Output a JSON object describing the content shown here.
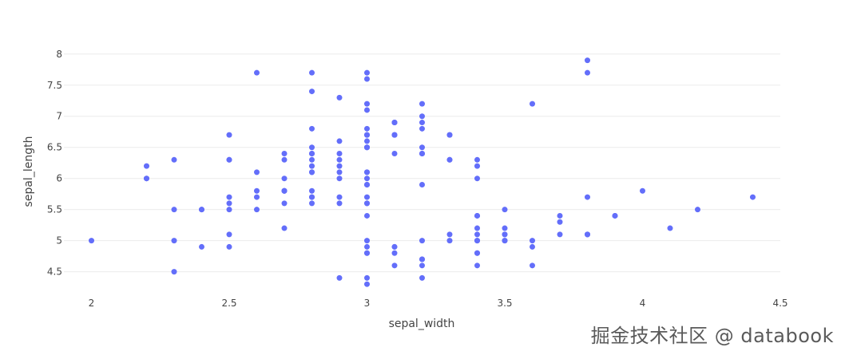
{
  "chart_data": {
    "type": "scatter",
    "title": "",
    "xlabel": "sepal_width",
    "ylabel": "sepal_length",
    "xlim": [
      1.9,
      4.5
    ],
    "ylim": [
      4.2,
      8.1
    ],
    "xticks": [
      2,
      2.5,
      3,
      3.5,
      4,
      4.5
    ],
    "xtick_labels": [
      "2",
      "2.5",
      "3",
      "3.5",
      "4",
      "4.5"
    ],
    "yticks": [
      4.5,
      5,
      5.5,
      6,
      6.5,
      7,
      7.5,
      8
    ],
    "ytick_labels": [
      "4.5",
      "5",
      "5.5",
      "6",
      "6.5",
      "7",
      "7.5",
      "8"
    ],
    "grid": true,
    "legend": false,
    "marker_color": "#636efa",
    "points": [
      [
        3.5,
        5.1
      ],
      [
        3.0,
        4.9
      ],
      [
        3.2,
        4.7
      ],
      [
        3.1,
        4.6
      ],
      [
        3.6,
        5.0
      ],
      [
        3.9,
        5.4
      ],
      [
        3.4,
        4.6
      ],
      [
        3.4,
        5.0
      ],
      [
        2.9,
        4.4
      ],
      [
        3.1,
        4.9
      ],
      [
        3.7,
        5.4
      ],
      [
        3.4,
        4.8
      ],
      [
        3.0,
        4.8
      ],
      [
        3.0,
        4.3
      ],
      [
        4.0,
        5.8
      ],
      [
        4.4,
        5.7
      ],
      [
        3.9,
        5.4
      ],
      [
        3.5,
        5.1
      ],
      [
        3.8,
        5.7
      ],
      [
        3.8,
        5.1
      ],
      [
        3.4,
        5.4
      ],
      [
        3.7,
        5.1
      ],
      [
        3.6,
        4.6
      ],
      [
        3.3,
        5.1
      ],
      [
        3.4,
        4.8
      ],
      [
        3.0,
        5.0
      ],
      [
        3.4,
        5.0
      ],
      [
        3.5,
        5.2
      ],
      [
        3.4,
        5.2
      ],
      [
        3.2,
        4.7
      ],
      [
        3.1,
        4.8
      ],
      [
        3.4,
        5.4
      ],
      [
        4.1,
        5.2
      ],
      [
        4.2,
        5.5
      ],
      [
        3.1,
        4.9
      ],
      [
        3.2,
        5.0
      ],
      [
        3.5,
        5.5
      ],
      [
        3.6,
        4.9
      ],
      [
        3.0,
        4.4
      ],
      [
        3.4,
        5.1
      ],
      [
        3.5,
        5.0
      ],
      [
        2.3,
        4.5
      ],
      [
        3.2,
        4.4
      ],
      [
        3.5,
        5.0
      ],
      [
        3.8,
        5.1
      ],
      [
        3.0,
        4.8
      ],
      [
        3.8,
        5.1
      ],
      [
        3.2,
        4.6
      ],
      [
        3.7,
        5.3
      ],
      [
        3.3,
        5.0
      ],
      [
        3.2,
        7.0
      ],
      [
        3.2,
        6.4
      ],
      [
        3.1,
        6.9
      ],
      [
        2.3,
        5.5
      ],
      [
        2.8,
        6.5
      ],
      [
        2.8,
        5.7
      ],
      [
        3.3,
        6.3
      ],
      [
        2.4,
        4.9
      ],
      [
        2.9,
        6.6
      ],
      [
        2.7,
        5.2
      ],
      [
        2.0,
        5.0
      ],
      [
        3.0,
        5.9
      ],
      [
        2.2,
        6.0
      ],
      [
        2.9,
        6.1
      ],
      [
        2.9,
        5.6
      ],
      [
        3.1,
        6.7
      ],
      [
        3.0,
        5.6
      ],
      [
        2.7,
        5.8
      ],
      [
        2.2,
        6.2
      ],
      [
        2.5,
        5.6
      ],
      [
        3.2,
        5.9
      ],
      [
        2.8,
        6.1
      ],
      [
        2.5,
        6.3
      ],
      [
        2.8,
        6.1
      ],
      [
        2.9,
        6.4
      ],
      [
        3.0,
        6.6
      ],
      [
        2.8,
        6.8
      ],
      [
        3.0,
        6.7
      ],
      [
        2.9,
        6.0
      ],
      [
        2.6,
        5.7
      ],
      [
        2.4,
        5.5
      ],
      [
        2.4,
        5.5
      ],
      [
        2.7,
        5.8
      ],
      [
        2.7,
        6.0
      ],
      [
        3.0,
        5.4
      ],
      [
        3.4,
        6.0
      ],
      [
        3.1,
        6.7
      ],
      [
        2.3,
        6.3
      ],
      [
        3.0,
        5.6
      ],
      [
        2.5,
        5.5
      ],
      [
        2.6,
        5.5
      ],
      [
        3.0,
        6.1
      ],
      [
        2.6,
        5.8
      ],
      [
        2.3,
        5.0
      ],
      [
        2.7,
        5.6
      ],
      [
        3.0,
        5.7
      ],
      [
        2.9,
        5.7
      ],
      [
        2.9,
        6.2
      ],
      [
        2.5,
        5.1
      ],
      [
        2.8,
        5.7
      ],
      [
        3.3,
        6.3
      ],
      [
        2.7,
        5.8
      ],
      [
        3.0,
        7.1
      ],
      [
        2.9,
        6.3
      ],
      [
        3.0,
        6.5
      ],
      [
        3.0,
        7.6
      ],
      [
        2.5,
        4.9
      ],
      [
        2.9,
        7.3
      ],
      [
        2.5,
        6.7
      ],
      [
        3.6,
        7.2
      ],
      [
        3.2,
        6.5
      ],
      [
        2.7,
        6.4
      ],
      [
        3.0,
        6.8
      ],
      [
        2.5,
        5.7
      ],
      [
        2.8,
        5.8
      ],
      [
        3.2,
        6.4
      ],
      [
        3.0,
        6.5
      ],
      [
        3.8,
        7.7
      ],
      [
        2.6,
        7.7
      ],
      [
        2.2,
        6.0
      ],
      [
        3.2,
        6.9
      ],
      [
        2.8,
        5.6
      ],
      [
        2.8,
        7.7
      ],
      [
        2.7,
        6.3
      ],
      [
        3.3,
        6.7
      ],
      [
        3.2,
        7.2
      ],
      [
        2.8,
        6.2
      ],
      [
        3.0,
        6.1
      ],
      [
        2.8,
        6.4
      ],
      [
        3.0,
        7.2
      ],
      [
        2.8,
        7.4
      ],
      [
        3.8,
        7.9
      ],
      [
        2.8,
        6.4
      ],
      [
        2.8,
        6.3
      ],
      [
        2.6,
        6.1
      ],
      [
        3.0,
        7.7
      ],
      [
        3.4,
        6.3
      ],
      [
        3.1,
        6.4
      ],
      [
        3.0,
        6.0
      ],
      [
        3.1,
        6.9
      ],
      [
        3.1,
        6.7
      ],
      [
        3.1,
        6.9
      ],
      [
        2.7,
        5.8
      ],
      [
        3.2,
        6.8
      ],
      [
        3.3,
        6.7
      ],
      [
        3.0,
        6.7
      ],
      [
        2.5,
        6.3
      ],
      [
        3.0,
        6.5
      ],
      [
        3.4,
        6.2
      ],
      [
        3.0,
        5.9
      ]
    ]
  },
  "watermark": "掘金技术社区 @ databook"
}
